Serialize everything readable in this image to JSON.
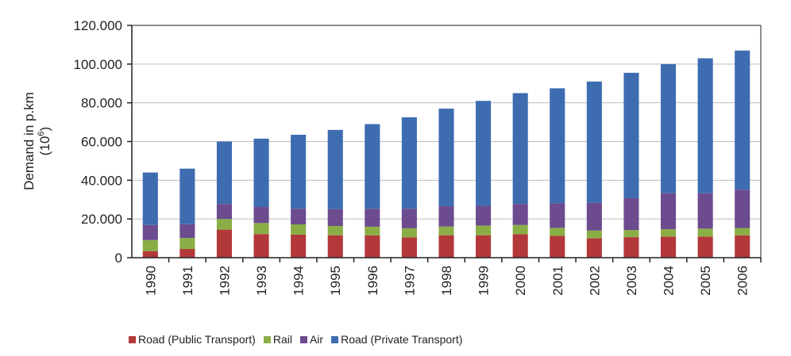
{
  "chart_data": {
    "type": "bar",
    "stacked": true,
    "title": "",
    "xlabel": "",
    "ylabel": "Demand in p.km",
    "ylabel_unit_base": "10",
    "ylabel_unit_exp": "6",
    "ylim": [
      0,
      120000
    ],
    "yticks": [
      0,
      20000,
      40000,
      60000,
      80000,
      100000,
      120000
    ],
    "ytick_labels": [
      "0",
      "20.000",
      "40.000",
      "60.000",
      "80.000",
      "100.000",
      "120.000"
    ],
    "grid": true,
    "legend_position": "bottom",
    "categories": [
      "1990",
      "1991",
      "1992",
      "1993",
      "1994",
      "1995",
      "1996",
      "1997",
      "1998",
      "1999",
      "2000",
      "2001",
      "2002",
      "2003",
      "2004",
      "2005",
      "2006"
    ],
    "series": [
      {
        "name": "Road (Public Transport)",
        "color": "#b3383a",
        "values": [
          3400,
          4500,
          14500,
          12200,
          11900,
          11600,
          11500,
          10500,
          11600,
          11600,
          12100,
          11300,
          10000,
          10600,
          10900,
          10900,
          11500
        ]
      },
      {
        "name": "Rail",
        "color": "#8aae45",
        "values": [
          5700,
          5700,
          5500,
          5700,
          5300,
          4800,
          4500,
          4700,
          4500,
          5000,
          4800,
          4100,
          4000,
          3700,
          3800,
          4100,
          3800
        ]
      },
      {
        "name": "Air",
        "color": "#6c4b8f",
        "values": [
          7800,
          7100,
          7800,
          8300,
          8100,
          8700,
          9300,
          10100,
          10500,
          10200,
          10900,
          12700,
          14300,
          16400,
          18600,
          18300,
          19800
        ]
      },
      {
        "name": "Road (Private Transport)",
        "color": "#3e6cb0",
        "values": [
          27100,
          28700,
          32200,
          35300,
          38200,
          40900,
          43700,
          47200,
          50400,
          54200,
          57200,
          59400,
          62700,
          64800,
          66700,
          69700,
          71900
        ]
      }
    ]
  }
}
